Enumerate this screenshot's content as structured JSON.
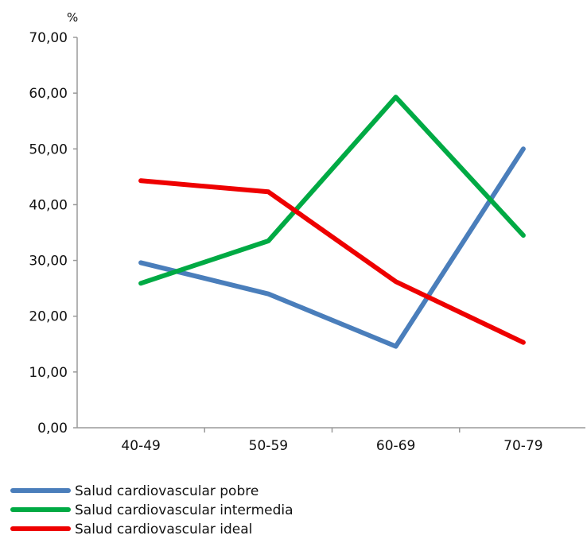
{
  "chart_data": {
    "type": "line",
    "title": "",
    "xlabel": "",
    "ylabel": "%",
    "categories": [
      "40-49",
      "50-59",
      "60-69",
      "70-79"
    ],
    "y_ticks": [
      "0,00",
      "10,00",
      "20,00",
      "30,00",
      "40,00",
      "50,00",
      "60,00",
      "70,00"
    ],
    "ylim": [
      0,
      70
    ],
    "grid": false,
    "legend_position": "bottom-left",
    "series": [
      {
        "name": "Salud cardiovascular pobre",
        "color": "#4a7ebb",
        "values": [
          29.6,
          24.0,
          14.6,
          50.0
        ]
      },
      {
        "name": "Salud cardiovascular intermedia",
        "color": "#00aa44",
        "values": [
          25.9,
          33.5,
          59.3,
          34.5
        ]
      },
      {
        "name": "Salud cardiovascular ideal",
        "color": "#ee0000",
        "values": [
          44.3,
          42.3,
          26.2,
          15.3
        ]
      }
    ]
  }
}
